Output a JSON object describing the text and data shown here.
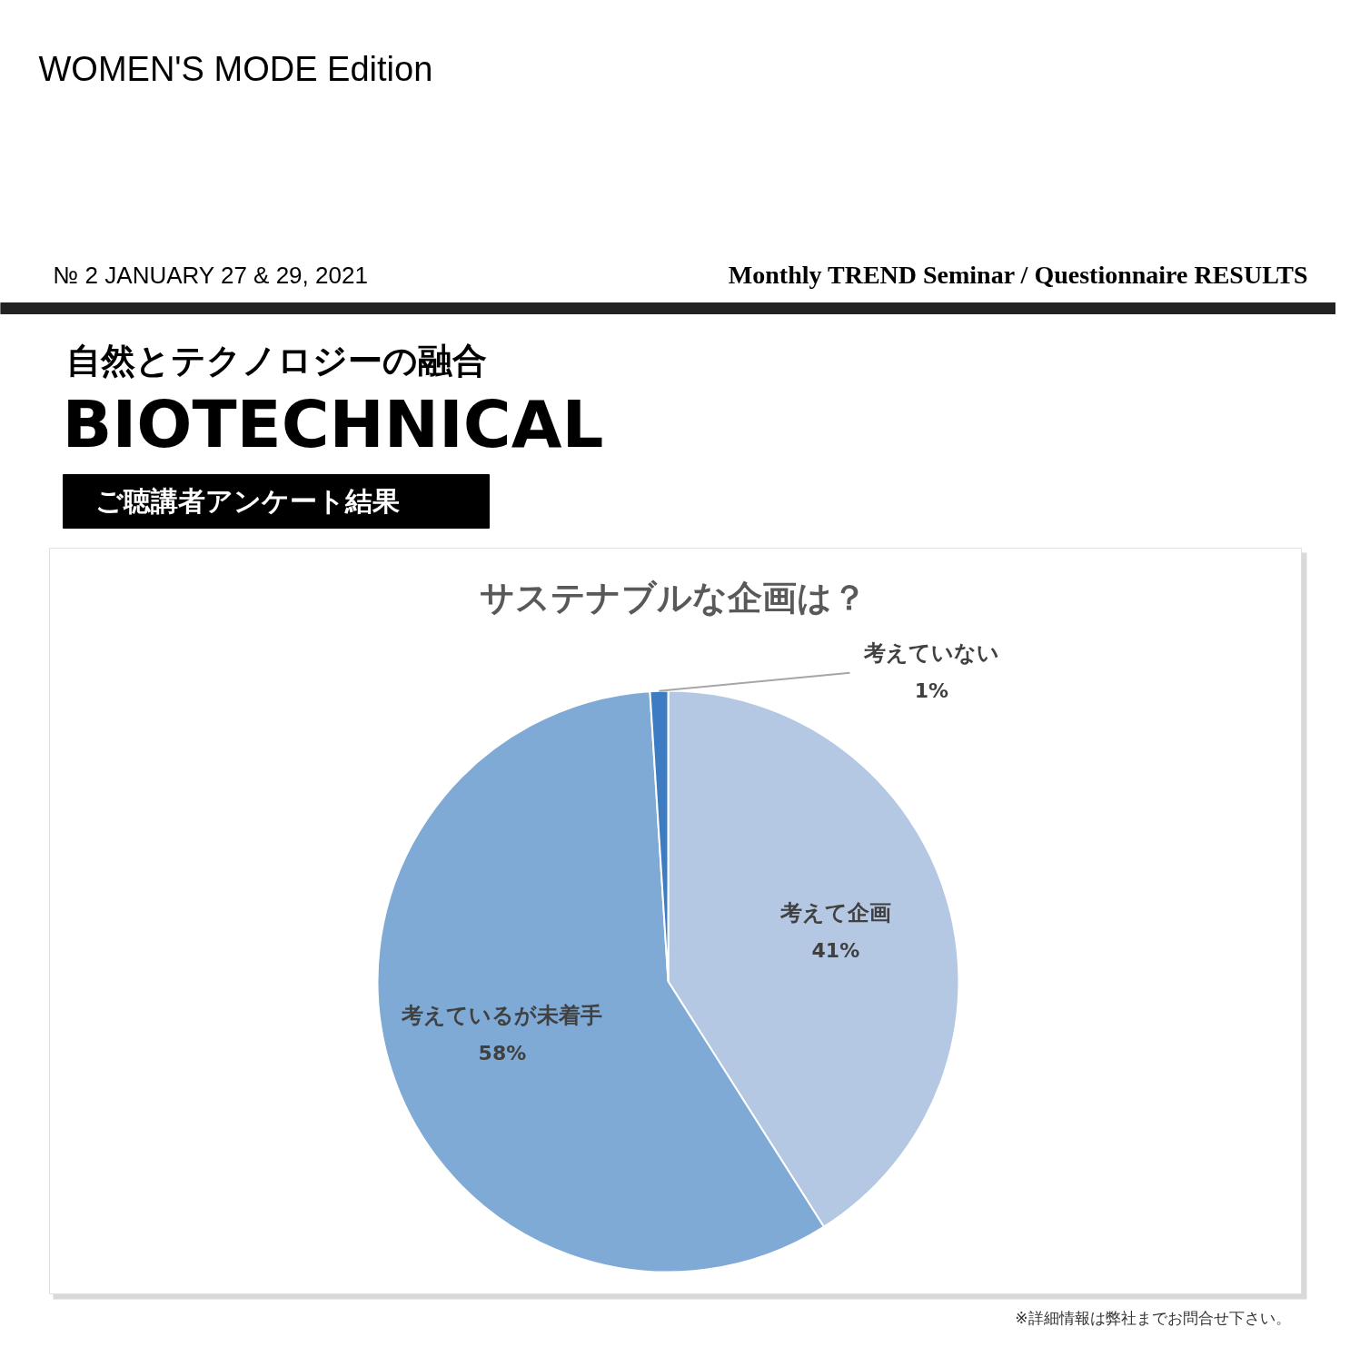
{
  "chart_data": {
    "type": "pie",
    "title": "サステナブルな企画は？",
    "categories": [
      "考えて企画",
      "考えているが未着手",
      "考えていない"
    ],
    "values": [
      41,
      58,
      1
    ],
    "colors": [
      "#b4c7e3",
      "#7faad6",
      "#3d7cc2"
    ],
    "value_labels": [
      "41%",
      "58%",
      "1%"
    ],
    "annotations": [
      "WOMEN'S MODE Edition",
      "№ 2 JANUARY 27 & 29, 2021",
      "Monthly TREND Seminar / Questionnaire RESULTS",
      "自然とテクノロジーの融合",
      "BIOTECHNICAL",
      "ご聴講者アンケート結果",
      "※詳細情報は弊社までお問合せ下さい。"
    ]
  }
}
